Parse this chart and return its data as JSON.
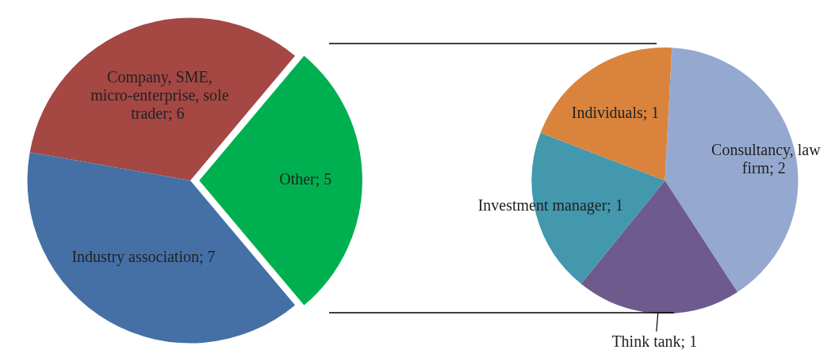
{
  "chart_data": [
    {
      "type": "pie",
      "categories": [
        "Company, SME, micro-enterprise, sole trader",
        "Other",
        "Industry association"
      ],
      "values": [
        6,
        5,
        7
      ],
      "value_labels": [
        "; 6",
        "; 5",
        "; 7"
      ],
      "colors": [
        "#a54743",
        "#00b050",
        "#4470a6"
      ]
    },
    {
      "type": "pie",
      "categories": [
        "Consultancy, law firm",
        "Think tank",
        "Investment manager",
        "Individuals"
      ],
      "values": [
        2,
        1,
        1,
        1
      ],
      "value_labels": [
        "; 2",
        "; 1",
        "; 1",
        "; 1"
      ],
      "colors": [
        "#95a9d0",
        "#6f5a8e",
        "#4398ae",
        "#d9833c"
      ]
    }
  ]
}
